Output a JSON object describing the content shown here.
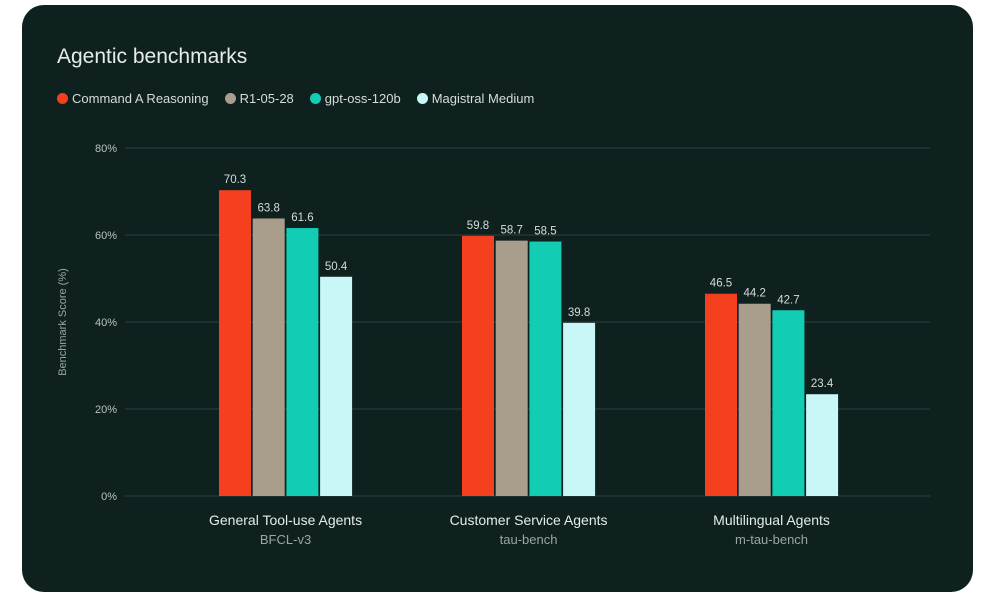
{
  "chart_data": {
    "type": "bar",
    "title": "Agentic benchmarks",
    "ylabel": "Benchmark Score (%)",
    "ylim": [
      0,
      80
    ],
    "yticks": [
      "0%",
      "20%",
      "40%",
      "60%",
      "80%"
    ],
    "ytick_values": [
      0,
      20,
      40,
      60,
      80
    ],
    "grid": true,
    "legend_position": "top-left",
    "categories": [
      "General Tool-use Agents",
      "Customer Service Agents",
      "Multilingual Agents"
    ],
    "subcategories": [
      "BFCL-v3",
      "tau-bench",
      "m-tau-bench"
    ],
    "series": [
      {
        "name": "Command A Reasoning",
        "color": "#f4401e",
        "values": [
          70.3,
          59.8,
          46.5
        ]
      },
      {
        "name": "R1-05-28",
        "color": "#a99d8b",
        "values": [
          63.8,
          58.7,
          44.2
        ]
      },
      {
        "name": "gpt-oss-120b",
        "color": "#12ccb4",
        "values": [
          61.6,
          58.5,
          42.7
        ]
      },
      {
        "name": "Magistral Medium",
        "color": "#c9f6f6",
        "values": [
          50.4,
          39.8,
          23.4
        ]
      }
    ],
    "value_labels": [
      [
        "70.3",
        "59.8",
        "46.5"
      ],
      [
        "63.8",
        "58.7",
        "44.2"
      ],
      [
        "61.6",
        "58.5",
        "42.7"
      ],
      [
        "50.4",
        "39.8",
        "23.4"
      ]
    ]
  }
}
